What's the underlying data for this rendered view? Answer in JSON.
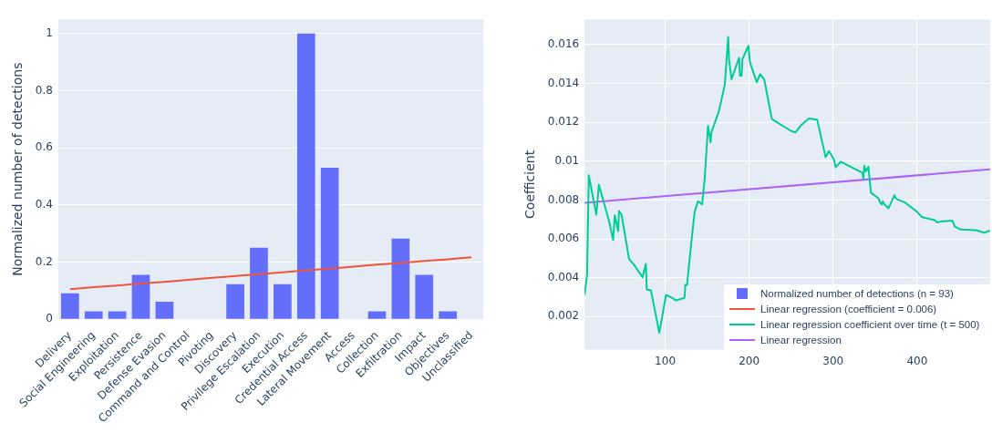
{
  "chart_data": [
    {
      "type": "bar",
      "ylabel": "Normalized number of detections",
      "categories": [
        "Delivery",
        "Social Engineering",
        "Exploitation",
        "Persistence",
        "Defense Evasion",
        "Command and Control",
        "Pivoting",
        "Discovery",
        "Privilege Escalation",
        "Execution",
        "Credential Access",
        "Lateral Movement",
        "Access",
        "Collection",
        "Exfiltration",
        "Impact",
        "Objectives",
        "Unclassified"
      ],
      "ylim": [
        0,
        1.05
      ],
      "yticks": [
        0,
        0.2,
        0.4,
        0.6,
        0.8,
        1
      ],
      "grid": "y",
      "legend": "right",
      "series": [
        {
          "name": "Normalized number of detections (n = 93)",
          "color": "#636efa",
          "values": [
            0.091,
            0.028,
            0.028,
            0.155,
            0.061,
            0,
            0,
            0.123,
            0.25,
            0.123,
            1,
            0.53,
            0,
            0.028,
            0.282,
            0.155,
            0.028,
            0
          ]
        },
        {
          "name": "Linear regression (coefficient = 0.006)",
          "type": "line",
          "color": "#ef553b",
          "values": [
            0.105,
            0.112,
            0.118,
            0.125,
            0.131,
            0.138,
            0.145,
            0.151,
            0.158,
            0.164,
            0.171,
            0.177,
            0.184,
            0.191,
            0.197,
            0.204,
            0.21,
            0.217
          ]
        }
      ]
    },
    {
      "type": "line",
      "ylabel": "Coefficient",
      "xlim": [
        4,
        487
      ],
      "xticks": [
        100,
        200,
        300,
        400
      ],
      "ylim": [
        0.0003,
        0.0173
      ],
      "yticks": [
        0.002,
        0.004,
        0.006,
        0.008,
        0.01,
        0.012,
        0.014,
        0.016
      ],
      "grid": true,
      "legend": "bottom right",
      "series": [
        {
          "name": "Linear regression coefficient over time (t = 500)",
          "color": "#00cc96",
          "x": [
            4,
            7,
            9,
            18,
            21,
            33,
            38,
            40,
            44,
            45,
            48,
            57,
            63,
            73,
            77,
            78,
            83,
            93,
            101,
            108,
            113,
            123,
            124,
            126,
            131,
            135,
            139,
            144,
            147,
            151,
            154,
            155,
            164,
            171,
            175,
            176,
            179,
            188,
            189,
            191,
            192,
            199,
            201,
            209,
            213,
            218,
            227,
            250,
            255,
            262,
            271,
            281,
            291,
            295,
            301,
            303,
            309,
            335,
            336,
            337,
            339,
            342,
            345,
            354,
            356,
            358,
            359,
            361,
            366,
            373,
            375,
            386,
            399,
            406,
            421,
            424,
            428,
            442,
            445,
            452,
            470,
            480,
            487
          ],
          "values": [
            0.00312,
            0.00417,
            0.00928,
            0.00725,
            0.00879,
            0.00694,
            0.00594,
            0.00722,
            0.0064,
            0.00743,
            0.00725,
            0.00497,
            0.00466,
            0.00402,
            0.00471,
            0.0034,
            0.00335,
            0.00117,
            0.00312,
            0.00297,
            0.00283,
            0.00297,
            0.00363,
            0.00363,
            0.00578,
            0.00737,
            0.00794,
            0.00778,
            0.00909,
            0.01182,
            0.01097,
            0.01148,
            0.01258,
            0.01394,
            0.0164,
            0.01525,
            0.01422,
            0.01532,
            0.0144,
            0.0144,
            0.01525,
            0.01594,
            0.01509,
            0.01406,
            0.01448,
            0.0142,
            0.01217,
            0.01155,
            0.01148,
            0.01186,
            0.0122,
            0.01214,
            0.0102,
            0.01052,
            0.01009,
            0.00968,
            0.00997,
            0.0094,
            0.00909,
            0.00977,
            0.00948,
            0.00971,
            0.00838,
            0.00809,
            0.00786,
            0.00777,
            0.00794,
            0.00778,
            0.00758,
            0.00825,
            0.00806,
            0.00786,
            0.00743,
            0.00712,
            0.00697,
            0.00685,
            0.00689,
            0.00694,
            0.00663,
            0.00648,
            0.00645,
            0.00632,
            0.00643
          ]
        },
        {
          "name": "Linear regression",
          "color": "#ab63fa",
          "x": [
            4,
            487
          ],
          "values": [
            0.00786,
            0.00958
          ]
        }
      ]
    }
  ]
}
